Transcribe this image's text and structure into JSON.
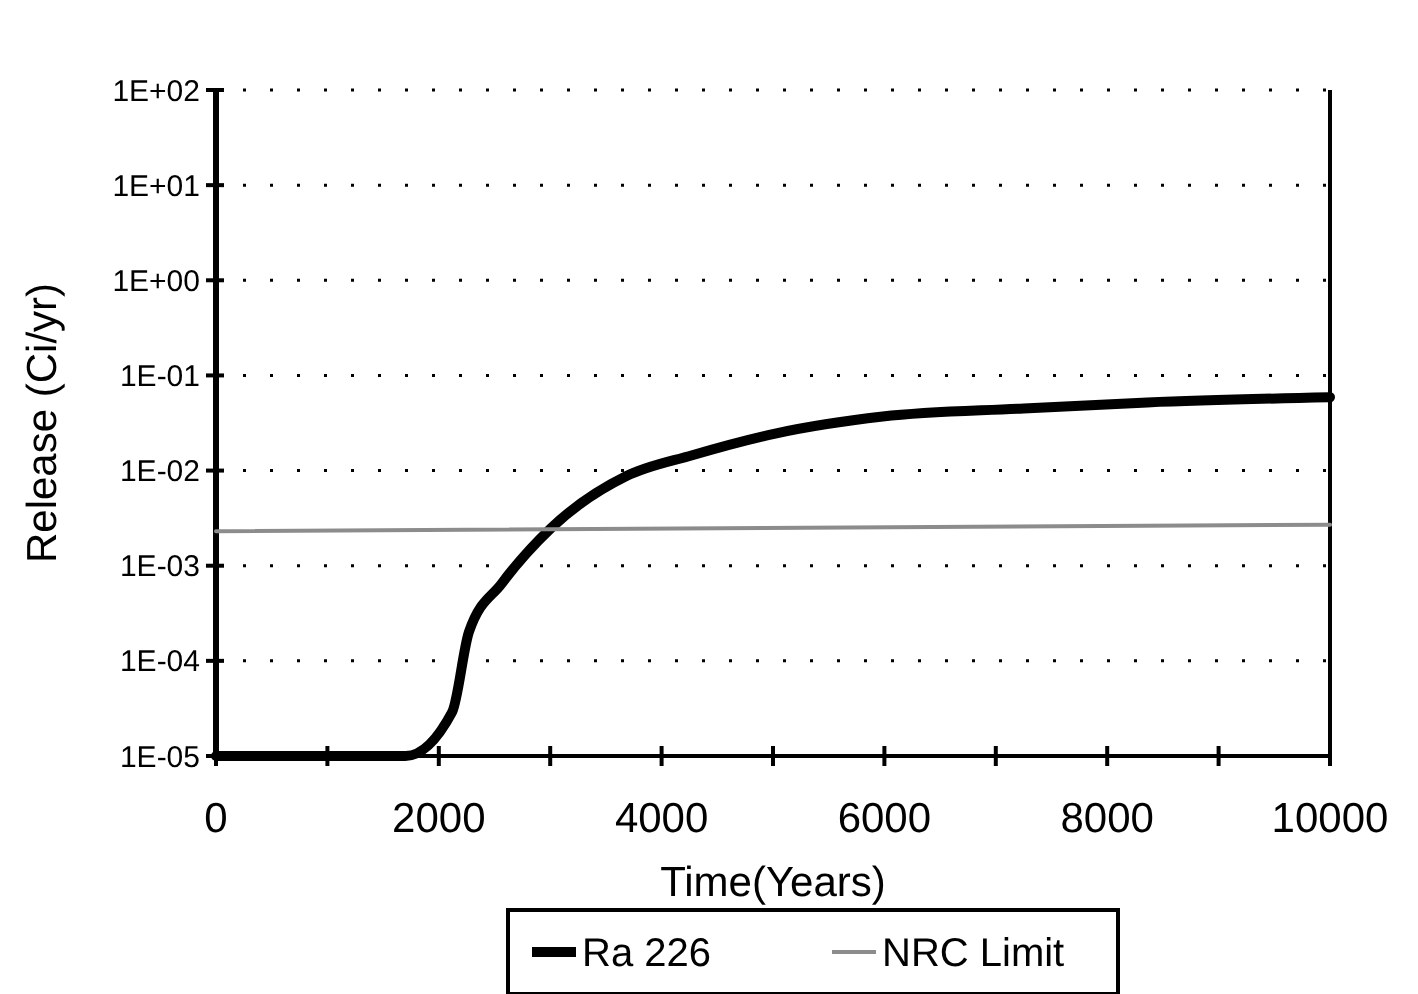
{
  "chart_data": {
    "type": "line",
    "xlabel": "Time(Years)",
    "ylabel": "Release (Ci/yr)",
    "series": [
      {
        "name": "Ra 226",
        "color": "#000000",
        "x": [
          0,
          1700,
          2120,
          2270,
          2565,
          3010,
          3680,
          4275,
          5020,
          5985,
          7250,
          8360,
          10000
        ],
        "values": [
          1e-05,
          1e-05,
          2.9e-05,
          0.0002,
          0.00065,
          0.0025,
          0.0087,
          0.0145,
          0.0245,
          0.037,
          0.045,
          0.052,
          0.059
        ]
      },
      {
        "name": "NRC Limit",
        "color": "#8c8c8c",
        "x": [
          0,
          10000
        ],
        "values": [
          0.0023,
          0.0027
        ]
      }
    ],
    "xlim": [
      0,
      10000
    ],
    "xticks": [
      0,
      {
        "value": 1000,
        "label": null
      },
      2000,
      {
        "value": 3000,
        "label": null
      },
      4000,
      {
        "value": 5000,
        "label": null
      },
      6000,
      {
        "value": 7000,
        "label": null
      },
      8000,
      {
        "value": 9000,
        "label": null
      },
      10000
    ],
    "ylim": [
      1e-05,
      100
    ],
    "yticks": [
      {
        "value": 1e-05,
        "label": "1E-05"
      },
      {
        "value": 0.0001,
        "label": "1E-04"
      },
      {
        "value": 0.001,
        "label": "1E-03"
      },
      {
        "value": 0.01,
        "label": "1E-02"
      },
      {
        "value": 0.1,
        "label": "1E-01"
      },
      {
        "value": 1,
        "label": "1E+00"
      },
      {
        "value": 10,
        "label": "1E+01"
      },
      {
        "value": 100,
        "label": "1E+02"
      }
    ],
    "log": true,
    "grid": "y",
    "legend": "bottom"
  }
}
